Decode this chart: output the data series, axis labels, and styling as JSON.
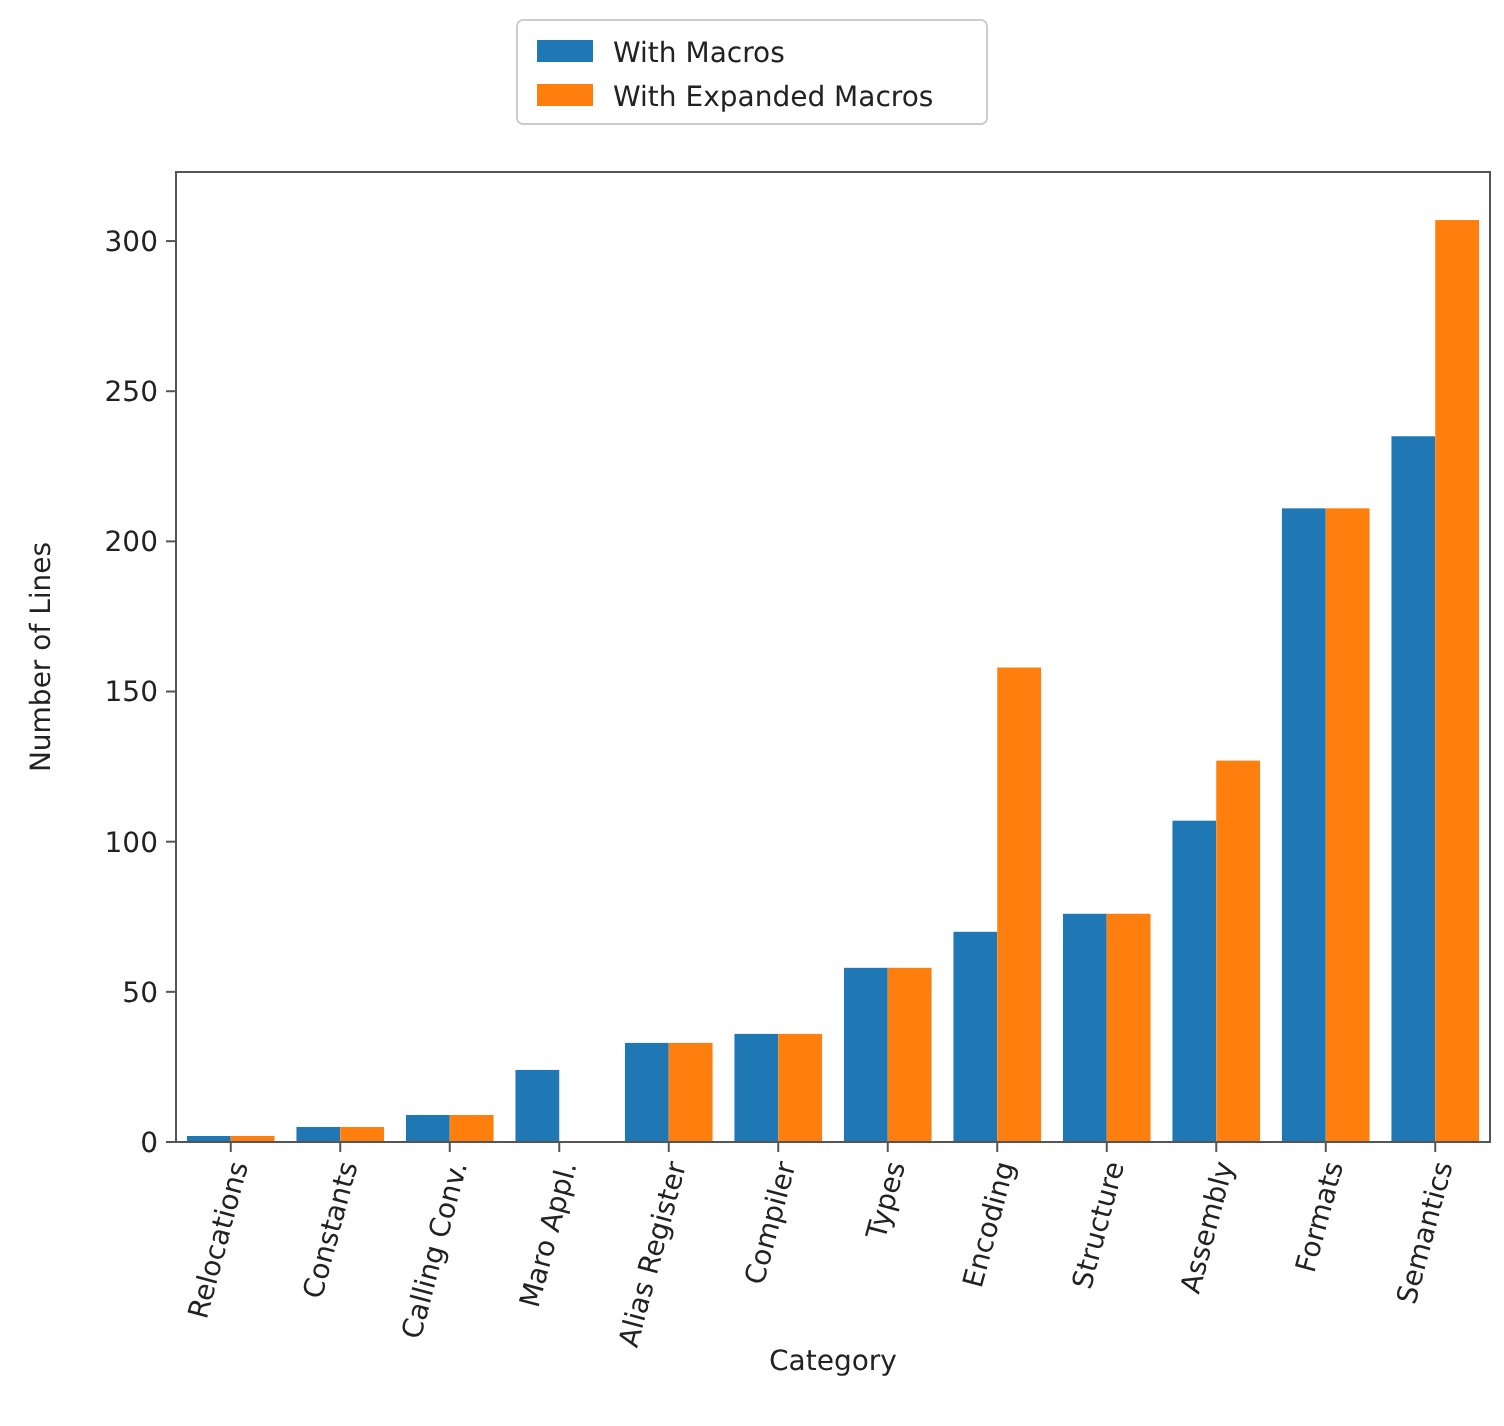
{
  "chart_data": {
    "type": "bar",
    "xlabel": "Category",
    "ylabel": "Number of Lines",
    "categories": [
      "Relocations",
      "Constants",
      "Calling Conv.",
      "Maro Appl.",
      "Alias Register",
      "Compiler",
      "Types",
      "Encoding",
      "Structure",
      "Assembly",
      "Formats",
      "Semantics"
    ],
    "series": [
      {
        "name": "With Macros",
        "color": "#1f77b4",
        "values": [
          2,
          5,
          9,
          24,
          33,
          36,
          58,
          70,
          76,
          107,
          211,
          235
        ]
      },
      {
        "name": "With Expanded Macros",
        "color": "#ff7f0e",
        "values": [
          2,
          5,
          9,
          null,
          33,
          36,
          58,
          158,
          76,
          127,
          211,
          307
        ]
      }
    ],
    "ylim": [
      0,
      323
    ],
    "yticks": [
      0,
      50,
      100,
      150,
      200,
      250,
      300
    ],
    "grid": false,
    "legend": "top"
  }
}
